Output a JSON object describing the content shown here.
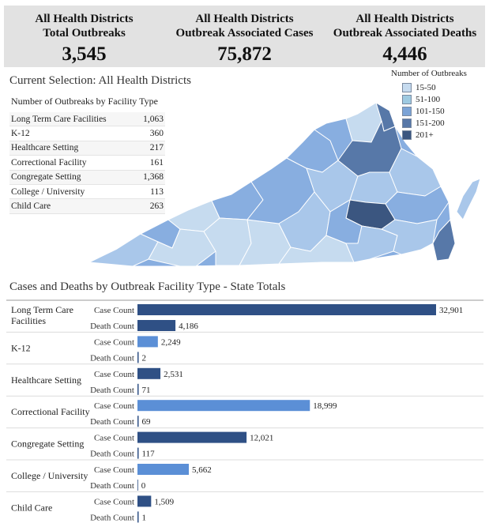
{
  "kpis": [
    {
      "label_line1": "All Health Districts",
      "label_line2": "Total Outbreaks",
      "value": "3,545"
    },
    {
      "label_line1": "All Health Districts",
      "label_line2": "Outbreak Associated Cases",
      "value": "75,872"
    },
    {
      "label_line1": "All Health Districts",
      "label_line2": "Outbreak Associated Deaths",
      "value": "4,446"
    }
  ],
  "selection_title": "Current Selection: All Health Districts",
  "facility_table": {
    "title": "Number of Outbreaks by Facility Type",
    "rows": [
      {
        "name": "Long Term Care Facilities",
        "value": "1,063"
      },
      {
        "name": "K-12",
        "value": "360"
      },
      {
        "name": "Healthcare Setting",
        "value": "217"
      },
      {
        "name": "Correctional Facility",
        "value": "161"
      },
      {
        "name": "Congregate Setting",
        "value": "1,368"
      },
      {
        "name": "College / University",
        "value": "113"
      },
      {
        "name": "Child Care",
        "value": "263"
      }
    ]
  },
  "legend": {
    "title": "Number of Outbreaks",
    "items": [
      {
        "label": "15-50",
        "color": "#c6dbef"
      },
      {
        "label": "51-100",
        "color": "#9ecae1"
      },
      {
        "label": "101-150",
        "color": "#7ba3d6"
      },
      {
        "label": "151-200",
        "color": "#5778a8"
      },
      {
        "label": "201+",
        "color": "#3b5680"
      }
    ]
  },
  "map_colors": {
    "lightest": "#c6dbef",
    "light": "#a9c7ea",
    "medium": "#88aee0",
    "dark": "#5778a8",
    "darkest": "#3b5680"
  },
  "chart_data": {
    "type": "bar",
    "title": "Cases and Deaths by Outbreak Facility Type - State Totals",
    "orientation": "horizontal",
    "categories": [
      "Long Term Care Facilities",
      "K-12",
      "Healthcare Setting",
      "Correctional Facility",
      "Congregate Setting",
      "College / University",
      "Child Care"
    ],
    "series": [
      {
        "name": "Case Count",
        "values": [
          32901,
          2249,
          2531,
          18999,
          12021,
          5662,
          1509
        ]
      },
      {
        "name": "Death Count",
        "values": [
          4186,
          2,
          71,
          69,
          117,
          0,
          1
        ]
      }
    ],
    "value_labels": {
      "Case Count": [
        "32,901",
        "2,249",
        "2,531",
        "18,999",
        "12,021",
        "5,662",
        "1,509"
      ],
      "Death Count": [
        "4,186",
        "2",
        "71",
        "69",
        "117",
        "0",
        "1"
      ]
    },
    "bar_colors": [
      "#2f5085",
      "#5b8fd6",
      "#2f5085",
      "#5b8fd6",
      "#2f5085",
      "#5b8fd6",
      "#2f5085"
    ],
    "xlim": [
      0,
      32901
    ]
  }
}
